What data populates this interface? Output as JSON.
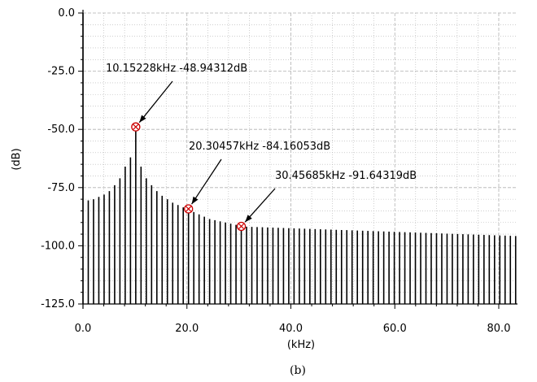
{
  "chart_data": {
    "type": "bar",
    "xlabel": "(kHz)",
    "ylabel": "(dB)",
    "xlim": [
      0,
      83.6
    ],
    "ylim": [
      -125,
      0
    ],
    "x_ticks": [
      "0.0",
      "20.0",
      "40.0",
      "60.0",
      "80.0"
    ],
    "y_ticks": [
      "0.0",
      "-25.0",
      "-50.0",
      "-75.0",
      "-100.0",
      "-125.0"
    ],
    "grid": true,
    "caption": "(b)",
    "dc": {
      "x": 0.0,
      "y": 0.0
    },
    "bin_spacing_khz": 1.015228,
    "spur_bins": {
      "1": -80.5,
      "2": -80.0,
      "3": -79.0,
      "4": -78.0,
      "5": -76.5,
      "6": -74.0,
      "7": -71.0,
      "8": -66.0,
      "9": -62.0,
      "10": -48.94312,
      "11": -66.0,
      "12": -71.0,
      "13": -74.0,
      "14": -76.5,
      "15": -78.5,
      "16": -80.0,
      "17": -81.5,
      "18": -82.5,
      "19": -83.5,
      "20": -84.16053,
      "21": -85.5,
      "22": -86.5,
      "23": -87.5,
      "24": -88.5,
      "25": -89.0,
      "26": -89.5,
      "27": -90.0,
      "28": -90.5,
      "29": -91.0,
      "30": -91.64319
    },
    "tail": {
      "from_bin": 31,
      "to_bin": 82,
      "start_db": -91.8,
      "end_db": -95.8
    },
    "markers": [
      {
        "x": 10.15228,
        "y": -48.94312,
        "label": "10.15228kHz -48.94312dB"
      },
      {
        "x": 20.30457,
        "y": -84.16053,
        "label": "20.30457kHz -84.16053dB"
      },
      {
        "x": 30.45685,
        "y": -91.64319,
        "label": "30.45685kHz -91.64319dB"
      }
    ],
    "colors": {
      "bars": "#000000",
      "grid": "#b0b0b0",
      "marker": "#cc0000"
    }
  }
}
